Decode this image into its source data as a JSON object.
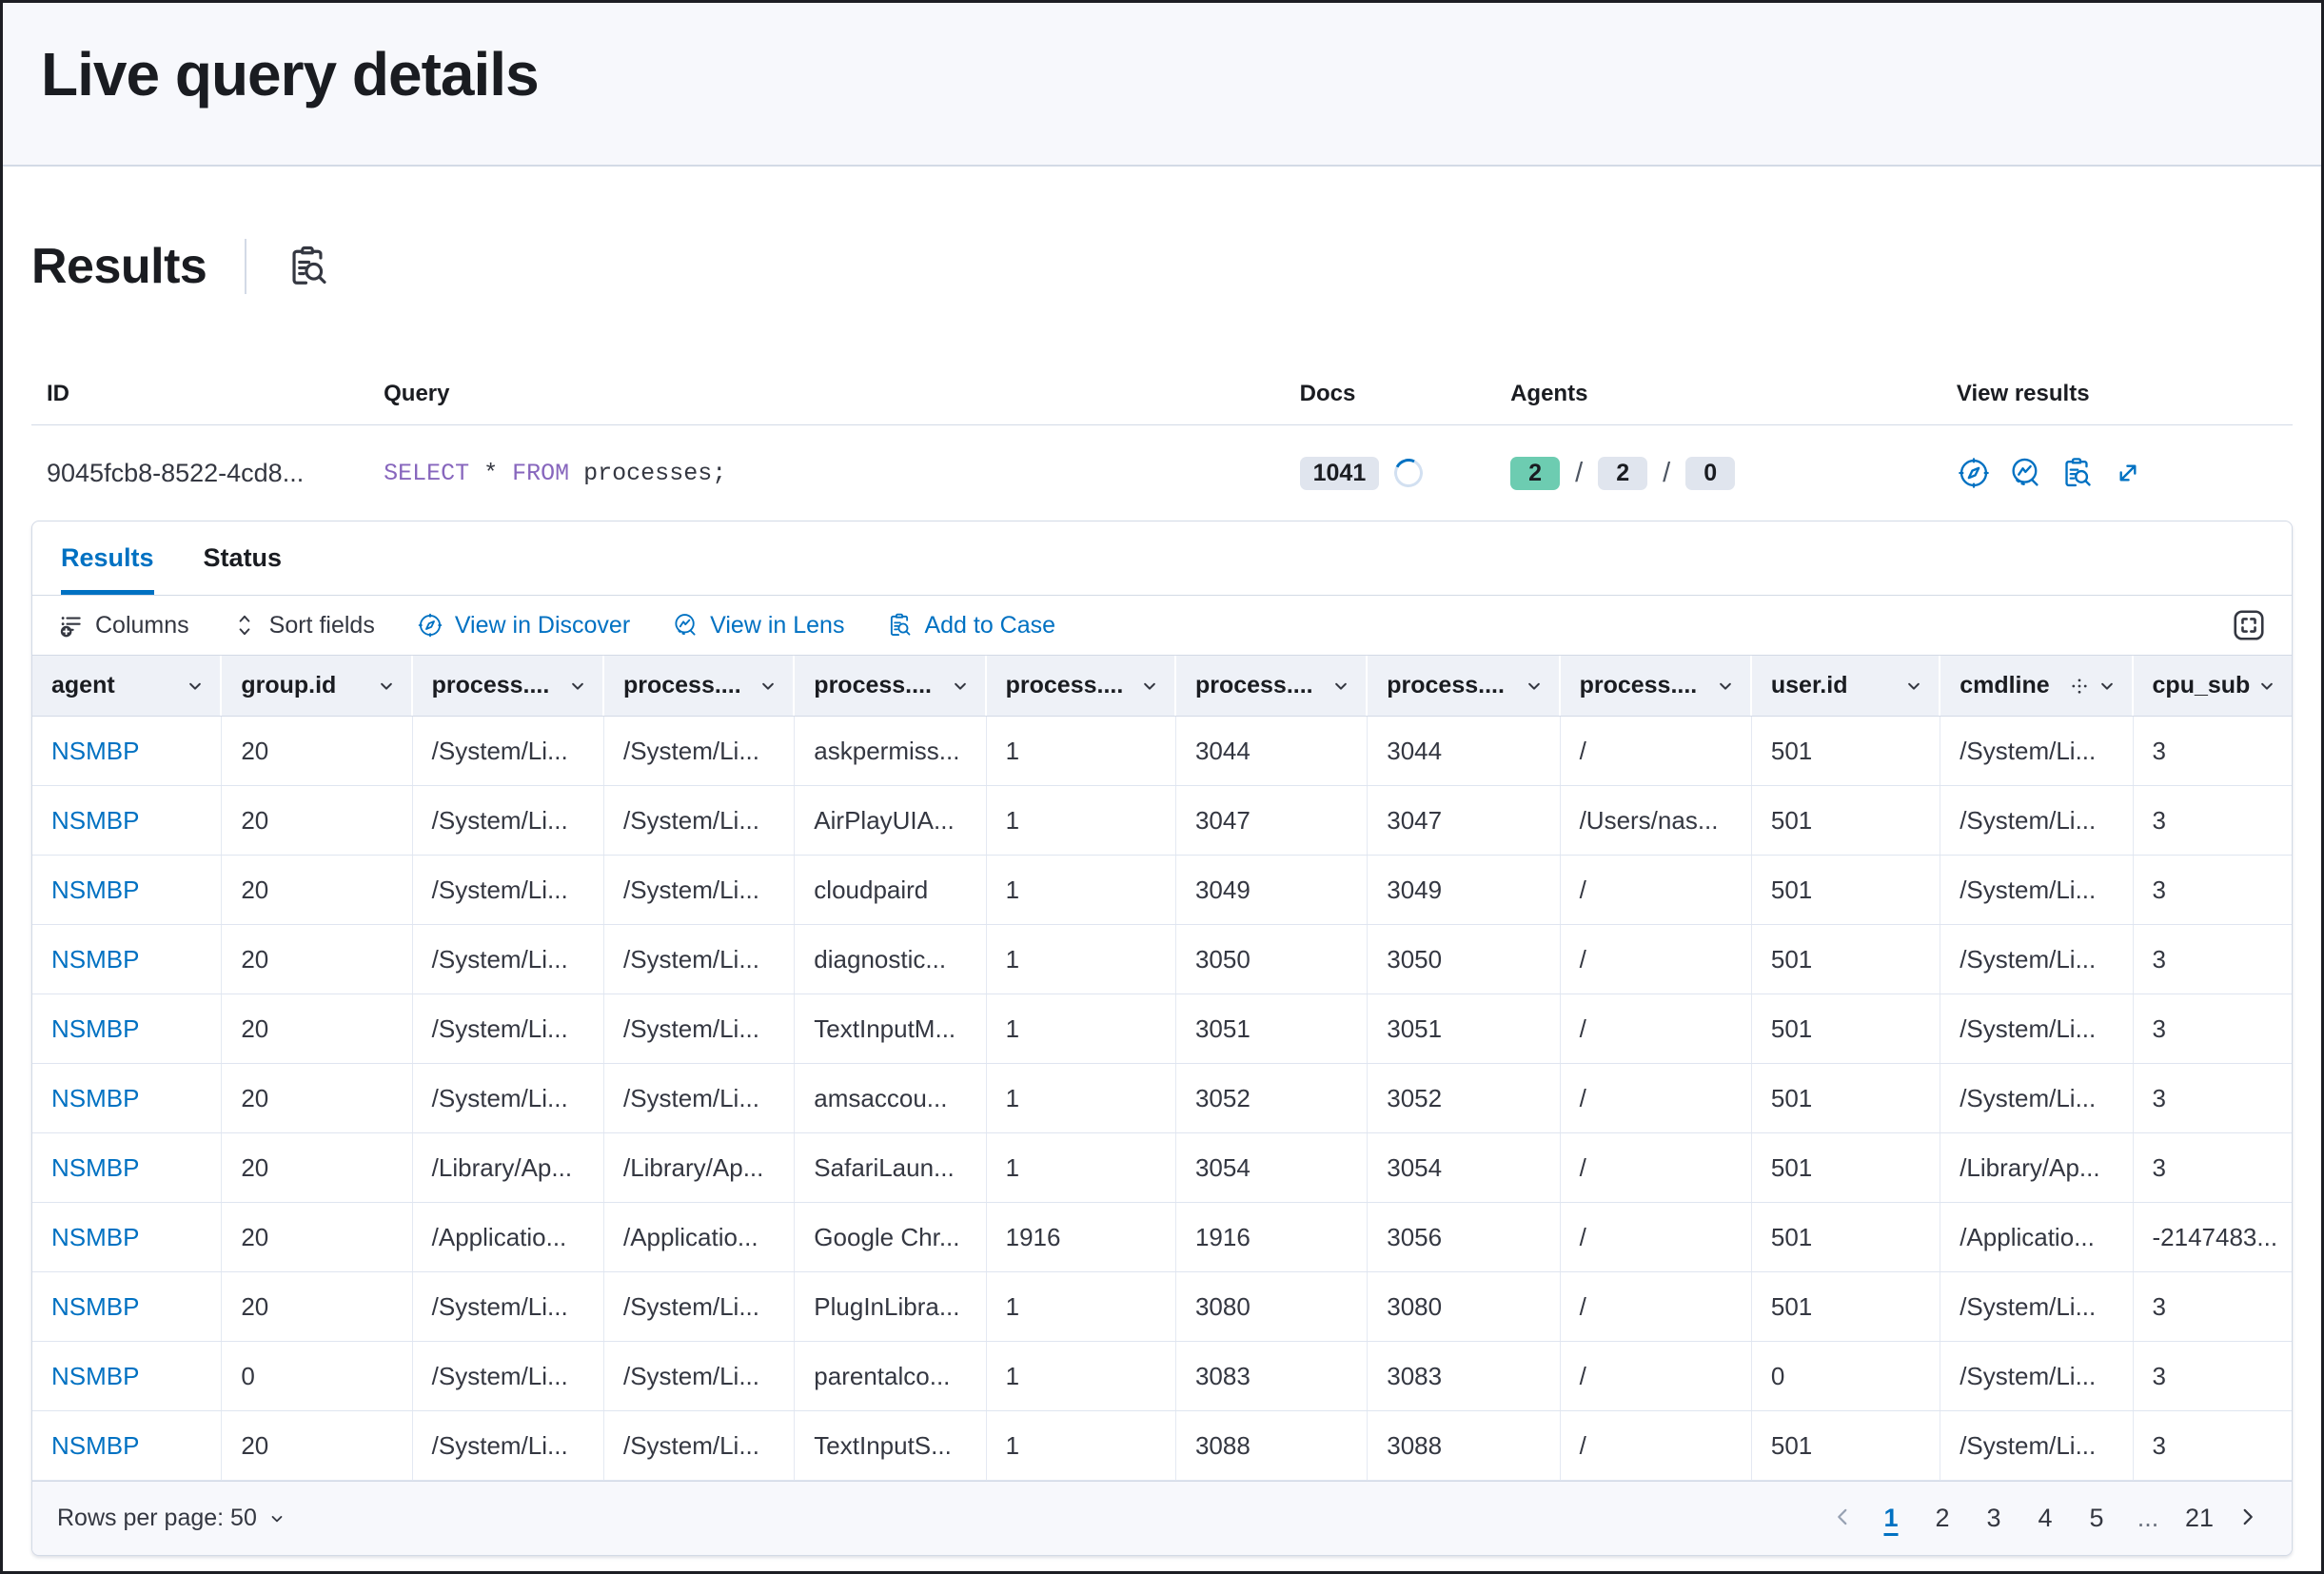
{
  "page": {
    "title": "Live query details"
  },
  "results_section": {
    "title": "Results",
    "header_icon": "inspect-icon"
  },
  "summary": {
    "columns": [
      "ID",
      "Query",
      "Docs",
      "Agents",
      "View results"
    ],
    "row": {
      "id": "9045fcb8-8522-4cd8...",
      "query_tokens": [
        {
          "t": "SELECT",
          "kw": true
        },
        {
          "t": " * ",
          "kw": false
        },
        {
          "t": "FROM",
          "kw": true
        },
        {
          "t": " processes;",
          "kw": false
        }
      ],
      "docs_count": "1041",
      "agents": {
        "success": "2",
        "total": "2",
        "failed": "0"
      },
      "view_results_icons": [
        "discover-icon",
        "lens-icon",
        "inspect-icon",
        "expand-icon"
      ]
    }
  },
  "tabs": [
    {
      "label": "Results",
      "active": true
    },
    {
      "label": "Status",
      "active": false
    }
  ],
  "toolbar": {
    "columns_label": "Columns",
    "sort_label": "Sort fields",
    "discover_label": "View in Discover",
    "lens_label": "View in Lens",
    "case_label": "Add to Case"
  },
  "grid": {
    "columns": [
      {
        "label": "agent"
      },
      {
        "label": "group.id"
      },
      {
        "label": "process...."
      },
      {
        "label": "process...."
      },
      {
        "label": "process...."
      },
      {
        "label": "process...."
      },
      {
        "label": "process...."
      },
      {
        "label": "process...."
      },
      {
        "label": "process...."
      },
      {
        "label": "user.id"
      },
      {
        "label": "cmdline",
        "drag_icon": true
      },
      {
        "label": "cpu_sub..."
      }
    ],
    "rows": [
      [
        "NSMBP",
        "20",
        "/System/Li...",
        "/System/Li...",
        "askpermiss...",
        "1",
        "3044",
        "3044",
        "/",
        "501",
        "/System/Li...",
        "3"
      ],
      [
        "NSMBP",
        "20",
        "/System/Li...",
        "/System/Li...",
        "AirPlayUIA...",
        "1",
        "3047",
        "3047",
        "/Users/nas...",
        "501",
        "/System/Li...",
        "3"
      ],
      [
        "NSMBP",
        "20",
        "/System/Li...",
        "/System/Li...",
        "cloudpaird",
        "1",
        "3049",
        "3049",
        "/",
        "501",
        "/System/Li...",
        "3"
      ],
      [
        "NSMBP",
        "20",
        "/System/Li...",
        "/System/Li...",
        "diagnostic...",
        "1",
        "3050",
        "3050",
        "/",
        "501",
        "/System/Li...",
        "3"
      ],
      [
        "NSMBP",
        "20",
        "/System/Li...",
        "/System/Li...",
        "TextInputM...",
        "1",
        "3051",
        "3051",
        "/",
        "501",
        "/System/Li...",
        "3"
      ],
      [
        "NSMBP",
        "20",
        "/System/Li...",
        "/System/Li...",
        "amsaccou...",
        "1",
        "3052",
        "3052",
        "/",
        "501",
        "/System/Li...",
        "3"
      ],
      [
        "NSMBP",
        "20",
        "/Library/Ap...",
        "/Library/Ap...",
        "SafariLaun...",
        "1",
        "3054",
        "3054",
        "/",
        "501",
        "/Library/Ap...",
        "3"
      ],
      [
        "NSMBP",
        "20",
        "/Applicatio...",
        "/Applicatio...",
        "Google Chr...",
        "1916",
        "1916",
        "3056",
        "/",
        "501",
        "/Applicatio...",
        "-2147483..."
      ],
      [
        "NSMBP",
        "20",
        "/System/Li...",
        "/System/Li...",
        "PlugInLibra...",
        "1",
        "3080",
        "3080",
        "/",
        "501",
        "/System/Li...",
        "3"
      ],
      [
        "NSMBP",
        "0",
        "/System/Li...",
        "/System/Li...",
        "parentalco...",
        "1",
        "3083",
        "3083",
        "/",
        "0",
        "/System/Li...",
        "3"
      ],
      [
        "NSMBP",
        "20",
        "/System/Li...",
        "/System/Li...",
        "TextInputS...",
        "1",
        "3088",
        "3088",
        "/",
        "501",
        "/System/Li...",
        "3"
      ]
    ]
  },
  "footer": {
    "rows_per_page": "Rows per page: 50",
    "pages": [
      "1",
      "2",
      "3",
      "4",
      "5",
      "...",
      "21"
    ],
    "active_page": "1"
  },
  "colors": {
    "accent": "#0071c2",
    "text": "#343741",
    "title": "#1a1c21",
    "subdued": "#69707d",
    "border": "#d3dae6",
    "strip-bg": "#f7f8fc",
    "grid-header-bg": "#eef1f7",
    "footer-bg": "#f7f8fc",
    "badge-bg": "#e0e5ee",
    "success-bg": "#6dccb1",
    "keyword": "#8766bd",
    "disabled": "#98a2b3"
  }
}
